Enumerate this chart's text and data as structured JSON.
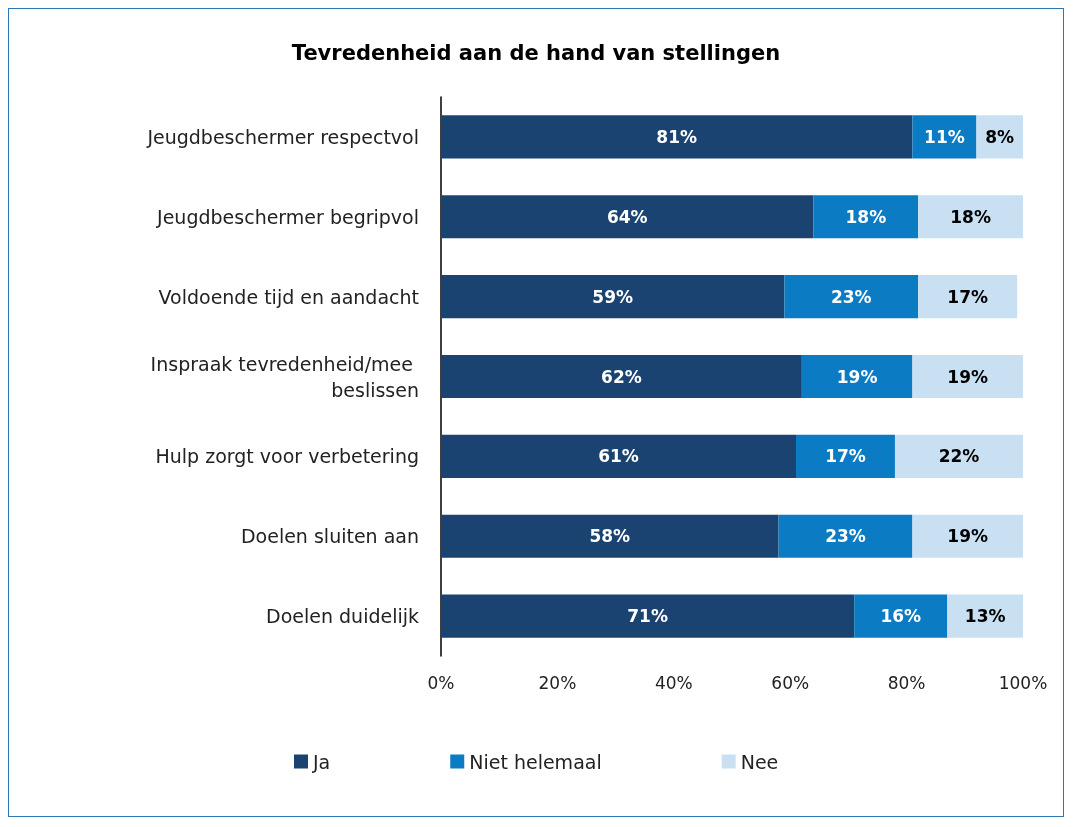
{
  "chart_data": {
    "type": "bar",
    "orientation": "horizontal",
    "stacked": true,
    "title": "Tevredenheid aan de hand van stellingen",
    "categories": [
      "Jeugdbeschermer respectvol",
      "Jeugdbeschermer begripvol",
      "Voldoende tijd en aandacht",
      "Inspraak tevredenheid/mee beslissen",
      "Hulp zorgt voor verbetering",
      "Doelen sluiten aan",
      "Doelen duidelijk"
    ],
    "series": [
      {
        "name": "Ja",
        "color": "#1b4372",
        "values": [
          81,
          64,
          59,
          62,
          61,
          58,
          71
        ],
        "value_labels": [
          "81%",
          "64%",
          "59%",
          "62%",
          "61%",
          "58%",
          "71%"
        ]
      },
      {
        "name": "Niet helemaal",
        "color": "#0b7bc4",
        "values": [
          11,
          18,
          23,
          19,
          17,
          23,
          16
        ],
        "value_labels": [
          "11%",
          "18%",
          "23%",
          "19%",
          "17%",
          "23%",
          "16%"
        ]
      },
      {
        "name": "Nee",
        "color": "#c8e0f2",
        "values": [
          8,
          18,
          17,
          19,
          22,
          19,
          13
        ],
        "value_labels": [
          "8%",
          "18%",
          "17%",
          "19%",
          "22%",
          "19%",
          "13%"
        ]
      }
    ],
    "xlim": [
      0,
      100
    ],
    "xticks": [
      {
        "value": 0,
        "label": "0%"
      },
      {
        "value": 20,
        "label": "20%"
      },
      {
        "value": 40,
        "label": "40%"
      },
      {
        "value": 60,
        "label": "60%"
      },
      {
        "value": 80,
        "label": "80%"
      },
      {
        "value": 100,
        "label": "100%"
      }
    ],
    "grid": false,
    "legend": "bottom"
  }
}
